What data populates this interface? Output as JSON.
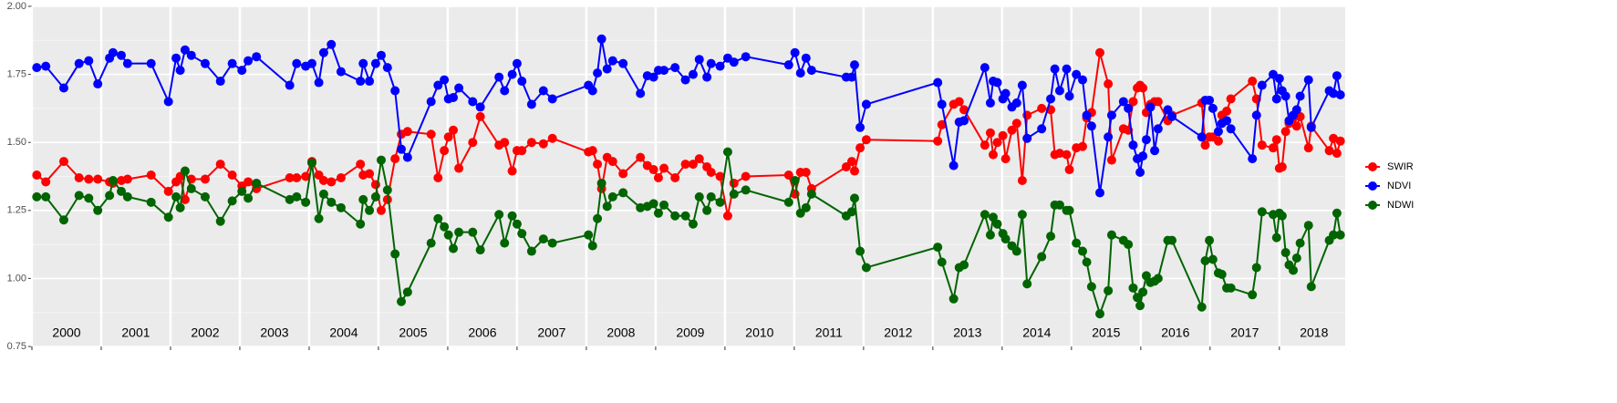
{
  "chart_data": {
    "type": "line",
    "x": [
      2000.07,
      2000.2,
      2000.46,
      2000.68,
      2000.82,
      2000.95,
      2001.12,
      2001.17,
      2001.29,
      2001.38,
      2001.72,
      2001.97,
      2002.08,
      2002.14,
      2002.21,
      2002.3,
      2002.5,
      2002.72,
      2002.89,
      2003.03,
      2003.12,
      2003.24,
      2003.72,
      2003.82,
      2003.95,
      2004.04,
      2004.14,
      2004.21,
      2004.32,
      2004.46,
      2004.74,
      2004.78,
      2004.87,
      2004.96,
      2005.04,
      2005.13,
      2005.24,
      2005.33,
      2005.42,
      2005.76,
      2005.86,
      2005.95,
      2006.01,
      2006.08,
      2006.16,
      2006.36,
      2006.47,
      2006.74,
      2006.82,
      2006.93,
      2007.0,
      2007.07,
      2007.21,
      2007.38,
      2007.51,
      2008.03,
      2008.09,
      2008.16,
      2008.22,
      2008.3,
      2008.38,
      2008.53,
      2008.78,
      2008.88,
      2008.97,
      2009.04,
      2009.12,
      2009.28,
      2009.43,
      2009.54,
      2009.63,
      2009.74,
      2009.8,
      2009.93,
      2010.04,
      2010.13,
      2010.3,
      2010.92,
      2011.01,
      2011.09,
      2011.17,
      2011.25,
      2011.75,
      2011.83,
      2011.87,
      2011.95,
      2012.04,
      2013.07,
      2013.13,
      2013.3,
      2013.38,
      2013.45,
      2013.75,
      2013.83,
      2013.87,
      2013.93,
      2014.01,
      2014.05,
      2014.14,
      2014.21,
      2014.29,
      2014.36,
      2014.57,
      2014.7,
      2014.76,
      2014.83,
      2014.93,
      2014.97,
      2015.07,
      2015.16,
      2015.22,
      2015.29,
      2015.41,
      2015.53,
      2015.58,
      2015.75,
      2015.82,
      2015.89,
      2015.95,
      2015.99,
      2016.03,
      2016.08,
      2016.14,
      2016.2,
      2016.25,
      2016.39,
      2016.45,
      2016.88,
      2016.93,
      2016.99,
      2017.04,
      2017.12,
      2017.17,
      2017.24,
      2017.3,
      2017.61,
      2017.67,
      2017.75,
      2017.91,
      2017.96,
      2018.0,
      2018.04,
      2018.09,
      2018.14,
      2018.2,
      2018.25,
      2018.3,
      2018.42,
      2018.46,
      2018.72,
      2018.78,
      2018.83,
      2018.88
    ],
    "series": [
      {
        "name": "SWIR",
        "color": "#ff0000",
        "values": [
          1.38,
          1.355,
          1.43,
          1.37,
          1.365,
          1.365,
          1.355,
          1.35,
          1.36,
          1.365,
          1.38,
          1.32,
          1.355,
          1.375,
          1.29,
          1.365,
          1.365,
          1.42,
          1.38,
          1.34,
          1.355,
          1.33,
          1.37,
          1.37,
          1.375,
          1.43,
          1.38,
          1.36,
          1.355,
          1.37,
          1.42,
          1.38,
          1.385,
          1.345,
          1.25,
          1.29,
          1.44,
          1.53,
          1.54,
          1.53,
          1.37,
          1.47,
          1.52,
          1.545,
          1.405,
          1.5,
          1.595,
          1.49,
          1.5,
          1.395,
          1.47,
          1.47,
          1.5,
          1.495,
          1.515,
          1.465,
          1.47,
          1.42,
          1.33,
          1.445,
          1.43,
          1.385,
          1.445,
          1.415,
          1.4,
          1.37,
          1.405,
          1.37,
          1.42,
          1.42,
          1.44,
          1.41,
          1.39,
          1.375,
          1.23,
          1.35,
          1.375,
          1.38,
          1.31,
          1.39,
          1.39,
          1.33,
          1.41,
          1.43,
          1.395,
          1.48,
          1.51,
          1.505,
          1.565,
          1.64,
          1.65,
          1.62,
          1.49,
          1.535,
          1.455,
          1.5,
          1.525,
          1.44,
          1.545,
          1.57,
          1.36,
          1.6,
          1.625,
          1.62,
          1.455,
          1.46,
          1.455,
          1.4,
          1.48,
          1.485,
          1.59,
          1.61,
          1.83,
          1.715,
          1.435,
          1.55,
          1.545,
          1.65,
          1.7,
          1.71,
          1.7,
          1.61,
          1.64,
          1.65,
          1.65,
          1.58,
          1.6,
          1.645,
          1.49,
          1.52,
          1.52,
          1.505,
          1.6,
          1.615,
          1.66,
          1.725,
          1.66,
          1.49,
          1.48,
          1.51,
          1.405,
          1.41,
          1.54,
          1.57,
          1.59,
          1.56,
          1.595,
          1.48,
          1.56,
          1.47,
          1.515,
          1.46,
          1.505
        ]
      },
      {
        "name": "NDVI",
        "color": "#0000ff",
        "values": [
          1.775,
          1.78,
          1.7,
          1.79,
          1.8,
          1.715,
          1.81,
          1.83,
          1.82,
          1.79,
          1.79,
          1.65,
          1.81,
          1.765,
          1.84,
          1.82,
          1.79,
          1.725,
          1.79,
          1.765,
          1.8,
          1.815,
          1.71,
          1.79,
          1.78,
          1.79,
          1.72,
          1.83,
          1.86,
          1.76,
          1.725,
          1.79,
          1.725,
          1.79,
          1.82,
          1.775,
          1.69,
          1.475,
          1.445,
          1.65,
          1.71,
          1.73,
          1.66,
          1.665,
          1.7,
          1.65,
          1.63,
          1.74,
          1.69,
          1.75,
          1.79,
          1.725,
          1.64,
          1.69,
          1.66,
          1.71,
          1.69,
          1.755,
          1.88,
          1.77,
          1.8,
          1.79,
          1.68,
          1.745,
          1.74,
          1.765,
          1.765,
          1.775,
          1.73,
          1.75,
          1.805,
          1.74,
          1.79,
          1.78,
          1.81,
          1.795,
          1.815,
          1.785,
          1.83,
          1.755,
          1.81,
          1.765,
          1.74,
          1.74,
          1.785,
          1.555,
          1.64,
          1.72,
          1.64,
          1.415,
          1.575,
          1.58,
          1.775,
          1.645,
          1.725,
          1.72,
          1.66,
          1.68,
          1.63,
          1.645,
          1.71,
          1.515,
          1.55,
          1.66,
          1.77,
          1.69,
          1.77,
          1.67,
          1.75,
          1.73,
          1.6,
          1.56,
          1.315,
          1.52,
          1.6,
          1.65,
          1.625,
          1.49,
          1.44,
          1.39,
          1.45,
          1.51,
          1.63,
          1.47,
          1.55,
          1.62,
          1.595,
          1.52,
          1.655,
          1.655,
          1.625,
          1.54,
          1.57,
          1.58,
          1.55,
          1.44,
          1.6,
          1.71,
          1.75,
          1.66,
          1.735,
          1.69,
          1.67,
          1.58,
          1.6,
          1.62,
          1.67,
          1.73,
          1.555,
          1.69,
          1.68,
          1.745,
          1.675
        ]
      },
      {
        "name": "NDWI",
        "color": "#006400",
        "values": [
          1.3,
          1.3,
          1.215,
          1.305,
          1.295,
          1.25,
          1.305,
          1.36,
          1.32,
          1.3,
          1.28,
          1.225,
          1.3,
          1.26,
          1.395,
          1.33,
          1.3,
          1.21,
          1.285,
          1.32,
          1.295,
          1.35,
          1.29,
          1.3,
          1.28,
          1.425,
          1.22,
          1.31,
          1.28,
          1.26,
          1.2,
          1.29,
          1.25,
          1.3,
          1.435,
          1.325,
          1.09,
          0.915,
          0.95,
          1.13,
          1.22,
          1.19,
          1.16,
          1.11,
          1.17,
          1.17,
          1.105,
          1.235,
          1.13,
          1.23,
          1.2,
          1.165,
          1.1,
          1.145,
          1.13,
          1.16,
          1.12,
          1.22,
          1.35,
          1.265,
          1.3,
          1.315,
          1.26,
          1.265,
          1.275,
          1.24,
          1.27,
          1.23,
          1.23,
          1.2,
          1.3,
          1.25,
          1.3,
          1.28,
          1.465,
          1.31,
          1.325,
          1.28,
          1.36,
          1.24,
          1.26,
          1.31,
          1.23,
          1.245,
          1.295,
          1.1,
          1.04,
          1.115,
          1.06,
          0.925,
          1.04,
          1.05,
          1.235,
          1.16,
          1.225,
          1.2,
          1.165,
          1.145,
          1.12,
          1.1,
          1.235,
          0.98,
          1.08,
          1.155,
          1.27,
          1.27,
          1.25,
          1.25,
          1.13,
          1.1,
          1.06,
          0.97,
          0.87,
          0.955,
          1.16,
          1.14,
          1.125,
          0.965,
          0.93,
          0.9,
          0.95,
          1.01,
          0.985,
          0.99,
          1.0,
          1.14,
          1.14,
          0.895,
          1.065,
          1.14,
          1.07,
          1.02,
          1.015,
          0.965,
          0.965,
          0.94,
          1.04,
          1.245,
          1.235,
          1.15,
          1.24,
          1.23,
          1.095,
          1.05,
          1.03,
          1.075,
          1.13,
          1.195,
          0.97,
          1.14,
          1.16,
          1.24,
          1.16
        ]
      }
    ],
    "year_labels": [
      "2000",
      "2001",
      "2002",
      "2003",
      "2004",
      "2005",
      "2006",
      "2007",
      "2008",
      "2009",
      "2010",
      "2011",
      "2012",
      "2013",
      "2014",
      "2015",
      "2016",
      "2017",
      "2018"
    ],
    "xlim": [
      2000,
      2018.95
    ],
    "ylim": [
      0.75,
      2.0
    ],
    "yticks": [
      {
        "value": 0.75,
        "label": "0.75"
      },
      {
        "value": 1.0,
        "label": "1.00"
      },
      {
        "value": 1.25,
        "label": "1.25"
      },
      {
        "value": 1.5,
        "label": "1.50"
      },
      {
        "value": 1.75,
        "label": "1.75"
      },
      {
        "value": 2.0,
        "label": "2.00"
      }
    ],
    "grid": true,
    "legend": "right"
  }
}
